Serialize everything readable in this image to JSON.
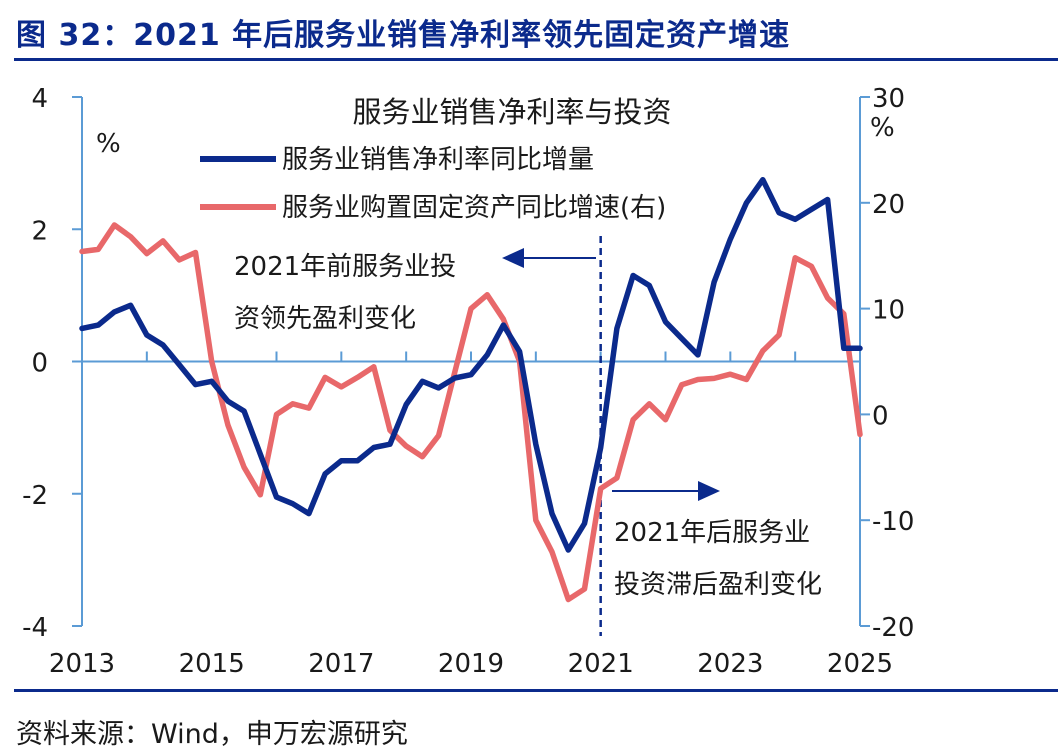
{
  "figure_title": "图 32：2021 年后服务业销售净利率领先固定资产增速",
  "source": "资料来源：Wind，申万宏源研究",
  "chart_data": {
    "type": "line",
    "title": "服务业销售净利率与投资",
    "ylabel_left_unit": "%",
    "ylabel_right_unit": "%",
    "x_ticks": [
      "2013",
      "2015",
      "2017",
      "2019",
      "2021",
      "2023",
      "2025"
    ],
    "x_range": [
      2013.0,
      2025.0
    ],
    "ylim_left": [
      -4,
      4
    ],
    "ylim_right": [
      -20,
      30
    ],
    "y_ticks_left": [
      "4",
      "2",
      "0",
      "-2",
      "-4"
    ],
    "y_ticks_right": [
      "30",
      "20",
      "10",
      "0",
      "-10",
      "-20"
    ],
    "legend_position": "top-center",
    "colors": {
      "series1": "#0b2a8c",
      "series2": "#e8686a",
      "axis": "#5b9bd5"
    },
    "series": [
      {
        "name": "服务业销售净利率同比增量",
        "axis": "left",
        "x": [
          2013.0,
          2013.25,
          2013.5,
          2013.75,
          2014.0,
          2014.25,
          2014.5,
          2014.75,
          2015.0,
          2015.25,
          2015.5,
          2015.75,
          2016.0,
          2016.25,
          2016.5,
          2016.75,
          2017.0,
          2017.25,
          2017.5,
          2017.75,
          2018.0,
          2018.25,
          2018.5,
          2018.75,
          2019.0,
          2019.25,
          2019.5,
          2019.75,
          2020.0,
          2020.25,
          2020.5,
          2020.75,
          2021.0,
          2021.25,
          2021.5,
          2021.75,
          2022.0,
          2022.25,
          2022.5,
          2022.75,
          2023.0,
          2023.25,
          2023.5,
          2023.75,
          2024.0,
          2024.25,
          2024.5,
          2024.75,
          2025.0
        ],
        "values": [
          0.5,
          0.55,
          0.75,
          0.85,
          0.4,
          0.25,
          -0.05,
          -0.35,
          -0.3,
          -0.6,
          -0.75,
          -1.4,
          -2.05,
          -2.15,
          -2.3,
          -1.7,
          -1.5,
          -1.5,
          -1.3,
          -1.25,
          -0.65,
          -0.3,
          -0.4,
          -0.25,
          -0.2,
          0.1,
          0.55,
          0.15,
          -1.25,
          -2.3,
          -2.85,
          -2.45,
          -1.3,
          0.5,
          1.3,
          1.15,
          0.6,
          0.35,
          0.1,
          1.2,
          1.85,
          2.4,
          2.75,
          2.25,
          2.15,
          2.3,
          2.45,
          0.2,
          0.2
        ]
      },
      {
        "name": "服务业购置固定资产同比增速(右)",
        "axis": "right",
        "x": [
          2013.0,
          2013.25,
          2013.5,
          2013.75,
          2014.0,
          2014.25,
          2014.5,
          2014.75,
          2015.0,
          2015.25,
          2015.5,
          2015.75,
          2016.0,
          2016.25,
          2016.5,
          2016.75,
          2017.0,
          2017.25,
          2017.5,
          2017.75,
          2018.0,
          2018.25,
          2018.5,
          2018.75,
          2019.0,
          2019.25,
          2019.5,
          2019.75,
          2020.0,
          2020.25,
          2020.5,
          2020.75,
          2021.0,
          2021.25,
          2021.5,
          2021.75,
          2022.0,
          2022.25,
          2022.5,
          2022.75,
          2023.0,
          2023.25,
          2023.5,
          2023.75,
          2024.0,
          2024.25,
          2024.5,
          2024.75,
          2025.0
        ],
        "values": [
          15.4,
          15.6,
          17.9,
          16.8,
          15.2,
          16.4,
          14.6,
          15.3,
          5.0,
          -1.0,
          -5.0,
          -7.6,
          0,
          1.0,
          0.6,
          3.5,
          2.6,
          3.5,
          4.5,
          -1.5,
          -3.0,
          -4.0,
          -2.0,
          4.0,
          10.0,
          11.3,
          9.0,
          5.0,
          -10.0,
          -13.0,
          -17.5,
          -16.5,
          -7.0,
          -6.0,
          -0.5,
          1.0,
          -0.5,
          2.8,
          3.3,
          3.4,
          3.8,
          3.3,
          6.0,
          7.5,
          14.8,
          14.0,
          11.0,
          9.5,
          -1.9
        ]
      }
    ],
    "annotations": [
      {
        "lines": [
          "2021年前服务业投",
          "资领先盈利变化"
        ],
        "arrow": "left"
      },
      {
        "lines": [
          "2021年后服务业",
          "投资滞后盈利变化"
        ],
        "arrow": "right"
      }
    ],
    "divider_x": 2021.0
  }
}
